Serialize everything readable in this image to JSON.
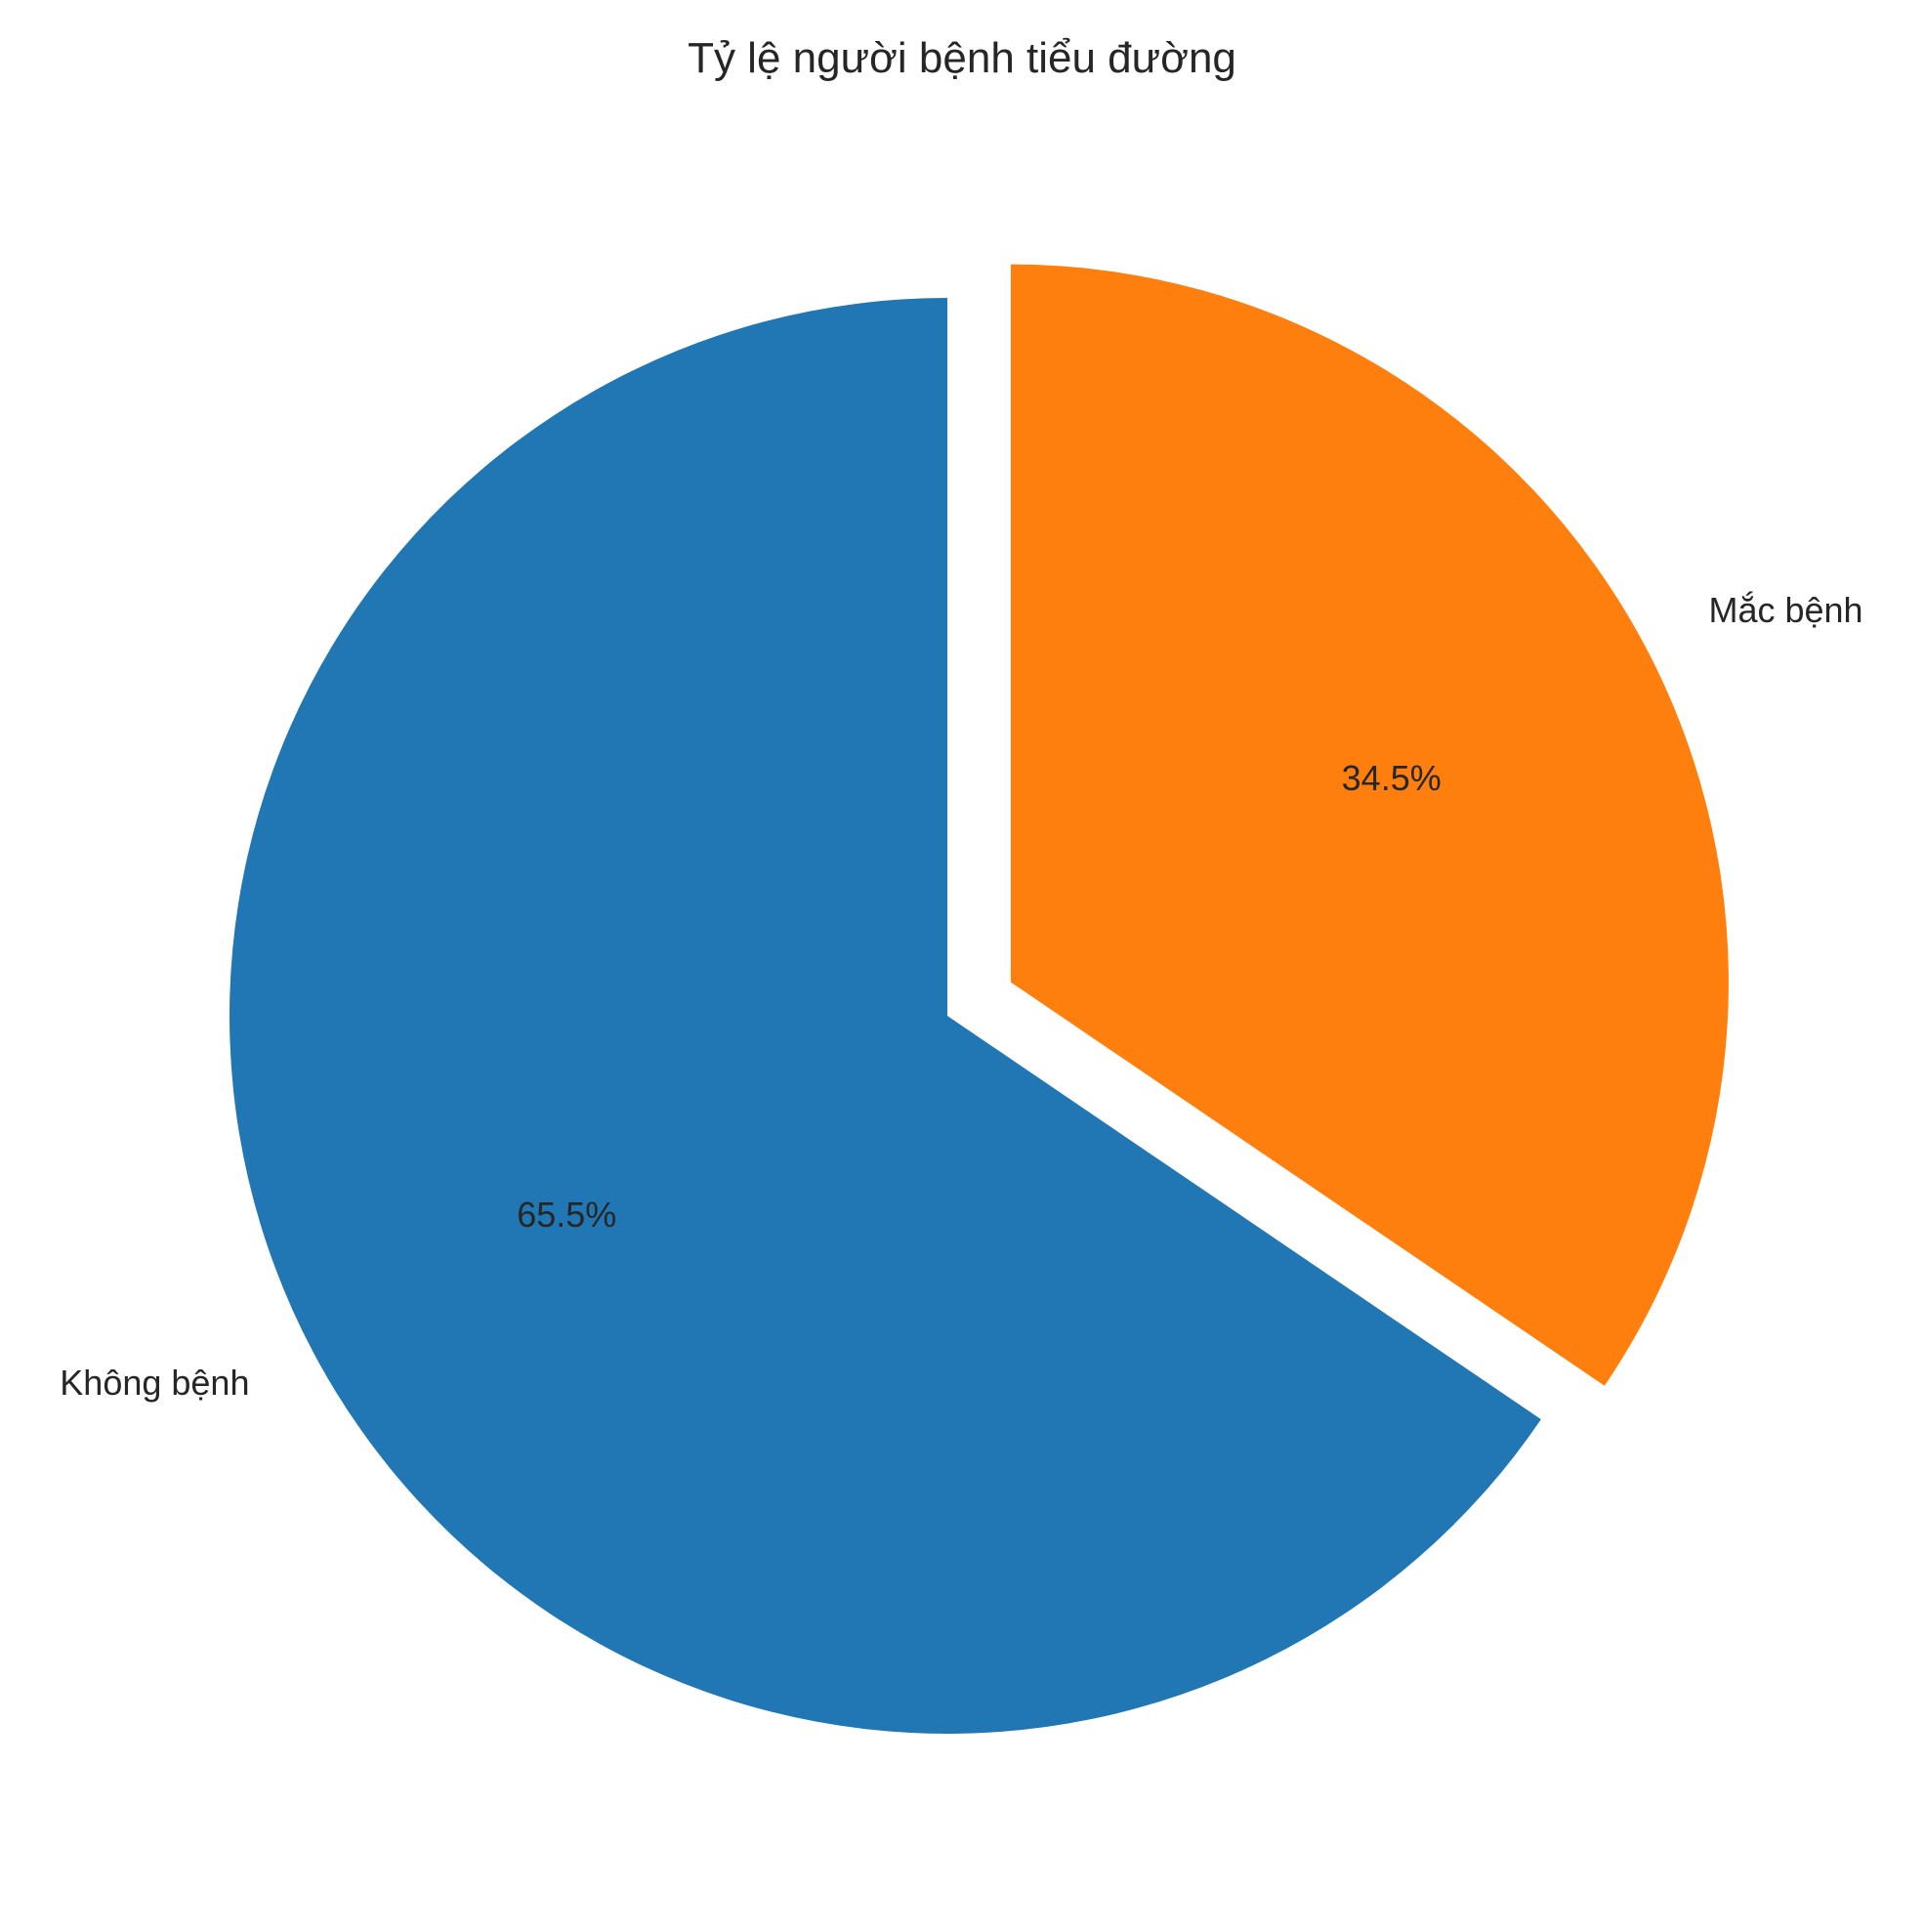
{
  "chart_data": {
    "type": "pie",
    "title": "Tỷ lệ người bệnh tiểu đường",
    "slices": [
      {
        "label": "Không bệnh",
        "value": 65.5,
        "value_label": "65.5%",
        "color": "#2077b4",
        "exploded": false
      },
      {
        "label": "Mắc bệnh",
        "value": 34.5,
        "value_label": "34.5%",
        "color": "#ff7f0e",
        "exploded": true
      }
    ],
    "start_angle_deg": 90,
    "direction": "counterclockwise"
  }
}
